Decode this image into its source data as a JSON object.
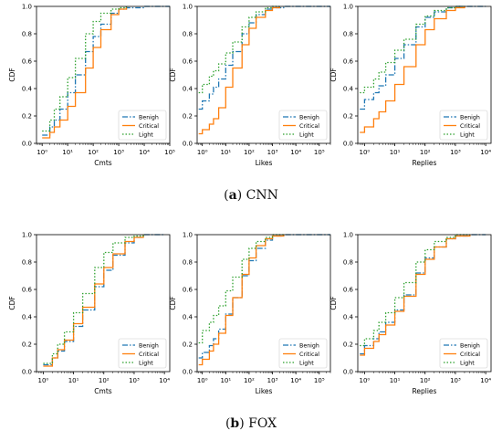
{
  "captions": {
    "top": {
      "letter": "a",
      "name": "CNN"
    },
    "bottom": {
      "letter": "b",
      "name": "FOX"
    }
  },
  "colors": {
    "Benign": "#1f77b4",
    "Critical": "#ff7f0e",
    "Light": "#2ca02c"
  },
  "chart_data": [
    {
      "type": "line",
      "group": "CNN",
      "xlabel": "Cmts",
      "ylabel": "CDF",
      "xscale": "log",
      "xlim": [
        0.6,
        100000
      ],
      "ylim": [
        0,
        1
      ],
      "xticks": [
        {
          "value": 1,
          "label": "10⁰"
        },
        {
          "value": 10,
          "label": "10¹"
        },
        {
          "value": 100,
          "label": "10²"
        },
        {
          "value": 1000,
          "label": "10³"
        },
        {
          "value": 10000,
          "label": "10⁴"
        },
        {
          "value": 100000,
          "label": "10⁵"
        }
      ],
      "yticks": [
        "0.0",
        "0.2",
        "0.4",
        "0.6",
        "0.8",
        "1.0"
      ],
      "legend": "lower-right",
      "grid": false,
      "series": [
        {
          "name": "Benigh",
          "style": "dashdot",
          "x": [
            1,
            2,
            3,
            5,
            10,
            20,
            50,
            100,
            200,
            500,
            1000,
            2000,
            10000,
            100000
          ],
          "y": [
            0.06,
            0.12,
            0.17,
            0.25,
            0.37,
            0.5,
            0.67,
            0.78,
            0.87,
            0.95,
            0.98,
            0.99,
            1.0,
            1.0
          ]
        },
        {
          "name": "Critical",
          "style": "solid",
          "x": [
            1,
            2,
            3,
            5,
            10,
            20,
            50,
            100,
            200,
            500,
            1000,
            2000
          ],
          "y": [
            0.04,
            0.08,
            0.12,
            0.17,
            0.27,
            0.37,
            0.55,
            0.7,
            0.83,
            0.94,
            0.98,
            1.0
          ]
        },
        {
          "name": "Light",
          "style": "dotted",
          "x": [
            1,
            2,
            3,
            5,
            10,
            20,
            50,
            100,
            200,
            500,
            1000,
            2000
          ],
          "y": [
            0.09,
            0.17,
            0.25,
            0.34,
            0.48,
            0.62,
            0.8,
            0.89,
            0.95,
            0.98,
            0.99,
            1.0
          ]
        }
      ]
    },
    {
      "type": "line",
      "group": "CNN",
      "xlabel": "Likes",
      "ylabel": "CDF",
      "xscale": "log",
      "xlim": [
        0.6,
        300000
      ],
      "ylim": [
        0,
        1
      ],
      "xticks": [
        {
          "value": 1,
          "label": "10⁰"
        },
        {
          "value": 10,
          "label": "10¹"
        },
        {
          "value": 100,
          "label": "10²"
        },
        {
          "value": 1000,
          "label": "10³"
        },
        {
          "value": 10000,
          "label": "10⁴"
        },
        {
          "value": 100000,
          "label": "10⁵"
        }
      ],
      "yticks": [
        "0.0",
        "0.2",
        "0.4",
        "0.6",
        "0.8",
        "1.0"
      ],
      "legend": "lower-right",
      "grid": false,
      "series": [
        {
          "name": "Benigh",
          "style": "dashdot",
          "x": [
            0.7,
            1,
            2,
            3,
            5,
            10,
            20,
            50,
            100,
            200,
            500,
            1000,
            3000,
            300000
          ],
          "y": [
            0.25,
            0.31,
            0.36,
            0.41,
            0.47,
            0.57,
            0.67,
            0.8,
            0.88,
            0.94,
            0.98,
            0.99,
            1.0,
            1.0
          ]
        },
        {
          "name": "Critical",
          "style": "solid",
          "x": [
            0.7,
            1,
            2,
            3,
            5,
            10,
            20,
            50,
            100,
            200,
            500,
            1000,
            2000
          ],
          "y": [
            0.07,
            0.1,
            0.14,
            0.18,
            0.26,
            0.41,
            0.55,
            0.72,
            0.84,
            0.92,
            0.97,
            0.99,
            1.0
          ]
        },
        {
          "name": "Light",
          "style": "dotted",
          "x": [
            0.7,
            1,
            2,
            3,
            5,
            10,
            20,
            50,
            100,
            200,
            500,
            1000,
            2000
          ],
          "y": [
            0.37,
            0.43,
            0.49,
            0.53,
            0.58,
            0.66,
            0.74,
            0.85,
            0.92,
            0.96,
            0.99,
            1.0,
            1.0
          ]
        }
      ]
    },
    {
      "type": "line",
      "group": "CNN",
      "xlabel": "Replies",
      "ylabel": "CDF",
      "xscale": "log",
      "xlim": [
        0.6,
        15000
      ],
      "ylim": [
        0,
        1
      ],
      "xticks": [
        {
          "value": 1,
          "label": "10⁰"
        },
        {
          "value": 10,
          "label": "10¹"
        },
        {
          "value": 100,
          "label": "10²"
        },
        {
          "value": 1000,
          "label": "10³"
        },
        {
          "value": 10000,
          "label": "10⁴"
        }
      ],
      "yticks": [
        "0.0",
        "0.2",
        "0.4",
        "0.6",
        "0.8",
        "1.0"
      ],
      "legend": "lower-right",
      "grid": false,
      "series": [
        {
          "name": "Benigh",
          "style": "dashdot",
          "x": [
            0.7,
            1,
            2,
            3,
            5,
            10,
            20,
            50,
            100,
            200,
            500,
            1000,
            3000,
            10000
          ],
          "y": [
            0.25,
            0.32,
            0.37,
            0.42,
            0.5,
            0.62,
            0.72,
            0.85,
            0.92,
            0.96,
            0.99,
            1.0,
            1.0,
            1.0
          ]
        },
        {
          "name": "Critical",
          "style": "solid",
          "x": [
            0.7,
            1,
            2,
            3,
            5,
            10,
            20,
            50,
            100,
            200,
            500,
            1000,
            2000
          ],
          "y": [
            0.08,
            0.12,
            0.18,
            0.23,
            0.31,
            0.43,
            0.56,
            0.72,
            0.83,
            0.91,
            0.97,
            0.99,
            1.0
          ]
        },
        {
          "name": "Light",
          "style": "dotted",
          "x": [
            0.7,
            1,
            2,
            3,
            5,
            10,
            20,
            50,
            100,
            200,
            500,
            1000,
            2000
          ],
          "y": [
            0.37,
            0.41,
            0.47,
            0.52,
            0.59,
            0.68,
            0.76,
            0.87,
            0.93,
            0.97,
            0.99,
            1.0,
            1.0
          ]
        }
      ]
    },
    {
      "type": "line",
      "group": "FOX",
      "xlabel": "Cmts",
      "ylabel": "CDF",
      "xscale": "log",
      "xlim": [
        0.6,
        15000
      ],
      "ylim": [
        0,
        1
      ],
      "xticks": [
        {
          "value": 1,
          "label": "10⁰"
        },
        {
          "value": 10,
          "label": "10¹"
        },
        {
          "value": 100,
          "label": "10²"
        },
        {
          "value": 1000,
          "label": "10³"
        },
        {
          "value": 10000,
          "label": "10⁴"
        }
      ],
      "yticks": [
        "0.0",
        "0.2",
        "0.4",
        "0.6",
        "0.8",
        "1.0"
      ],
      "legend": "lower-right",
      "grid": false,
      "series": [
        {
          "name": "Benigh",
          "style": "dashdot",
          "x": [
            1,
            2,
            3,
            5,
            10,
            20,
            50,
            100,
            200,
            500,
            1000,
            2000,
            10000
          ],
          "y": [
            0.05,
            0.1,
            0.15,
            0.22,
            0.33,
            0.45,
            0.62,
            0.74,
            0.85,
            0.94,
            0.98,
            1.0,
            1.0
          ]
        },
        {
          "name": "Critical",
          "style": "solid",
          "x": [
            1,
            2,
            3,
            5,
            10,
            20,
            50,
            100,
            200,
            500,
            1000,
            2000
          ],
          "y": [
            0.04,
            0.1,
            0.16,
            0.23,
            0.35,
            0.47,
            0.64,
            0.76,
            0.86,
            0.95,
            0.98,
            1.0
          ]
        },
        {
          "name": "Light",
          "style": "dotted",
          "x": [
            1,
            2,
            3,
            5,
            10,
            20,
            50,
            100,
            200,
            500,
            1000,
            2000
          ],
          "y": [
            0.06,
            0.13,
            0.2,
            0.29,
            0.43,
            0.57,
            0.76,
            0.87,
            0.94,
            0.98,
            0.99,
            1.0
          ]
        }
      ]
    },
    {
      "type": "line",
      "group": "FOX",
      "xlabel": "Likes",
      "ylabel": "CDF",
      "xscale": "log",
      "xlim": [
        0.6,
        300000
      ],
      "ylim": [
        0,
        1
      ],
      "xticks": [
        {
          "value": 1,
          "label": "10⁰"
        },
        {
          "value": 10,
          "label": "10¹"
        },
        {
          "value": 100,
          "label": "10²"
        },
        {
          "value": 1000,
          "label": "10³"
        },
        {
          "value": 10000,
          "label": "10⁴"
        },
        {
          "value": 100000,
          "label": "10⁵"
        }
      ],
      "yticks": [
        "0.0",
        "0.2",
        "0.4",
        "0.6",
        "0.8",
        "1.0"
      ],
      "legend": "lower-right",
      "grid": false,
      "series": [
        {
          "name": "Benigh",
          "style": "dashdot",
          "x": [
            0.7,
            1,
            2,
            3,
            5,
            10,
            20,
            50,
            100,
            200,
            500,
            1000,
            3000,
            300000
          ],
          "y": [
            0.1,
            0.14,
            0.19,
            0.24,
            0.31,
            0.42,
            0.54,
            0.7,
            0.81,
            0.9,
            0.96,
            0.99,
            1.0,
            1.0
          ]
        },
        {
          "name": "Critical",
          "style": "solid",
          "x": [
            0.7,
            1,
            2,
            3,
            5,
            10,
            20,
            50,
            100,
            200,
            500,
            1000,
            3000
          ],
          "y": [
            0.05,
            0.09,
            0.15,
            0.2,
            0.28,
            0.41,
            0.54,
            0.71,
            0.83,
            0.92,
            0.97,
            0.99,
            1.0
          ]
        },
        {
          "name": "Light",
          "style": "dotted",
          "x": [
            0.7,
            1,
            2,
            3,
            5,
            10,
            20,
            50,
            100,
            200,
            500,
            1000,
            3000
          ],
          "y": [
            0.21,
            0.3,
            0.36,
            0.41,
            0.48,
            0.59,
            0.69,
            0.82,
            0.9,
            0.95,
            0.98,
            1.0,
            1.0
          ]
        }
      ]
    },
    {
      "type": "line",
      "group": "FOX",
      "xlabel": "Replies",
      "ylabel": "CDF",
      "xscale": "log",
      "xlim": [
        0.6,
        15000
      ],
      "ylim": [
        0,
        1
      ],
      "xticks": [
        {
          "value": 1,
          "label": "10⁰"
        },
        {
          "value": 10,
          "label": "10¹"
        },
        {
          "value": 100,
          "label": "10²"
        },
        {
          "value": 1000,
          "label": "10³"
        },
        {
          "value": 10000,
          "label": "10⁴"
        }
      ],
      "yticks": [
        "0.0",
        "0.2",
        "0.4",
        "0.6",
        "0.8",
        "1.0"
      ],
      "legend": "lower-right",
      "grid": false,
      "series": [
        {
          "name": "Benigh",
          "style": "dashdot",
          "x": [
            0.7,
            1,
            2,
            3,
            5,
            10,
            20,
            50,
            100,
            200,
            500,
            1000,
            3000,
            10000
          ],
          "y": [
            0.13,
            0.19,
            0.24,
            0.29,
            0.36,
            0.45,
            0.56,
            0.72,
            0.83,
            0.91,
            0.97,
            0.99,
            1.0,
            1.0
          ]
        },
        {
          "name": "Critical",
          "style": "solid",
          "x": [
            0.7,
            1,
            2,
            3,
            5,
            10,
            20,
            50,
            100,
            200,
            500,
            1000,
            3000
          ],
          "y": [
            0.12,
            0.17,
            0.22,
            0.27,
            0.34,
            0.44,
            0.55,
            0.71,
            0.82,
            0.91,
            0.97,
            0.99,
            1.0
          ]
        },
        {
          "name": "Light",
          "style": "dotted",
          "x": [
            0.7,
            1,
            2,
            3,
            5,
            10,
            20,
            50,
            100,
            200,
            500,
            1000,
            3000
          ],
          "y": [
            0.19,
            0.24,
            0.3,
            0.36,
            0.43,
            0.54,
            0.65,
            0.8,
            0.89,
            0.95,
            0.98,
            1.0,
            1.0
          ]
        }
      ]
    }
  ]
}
